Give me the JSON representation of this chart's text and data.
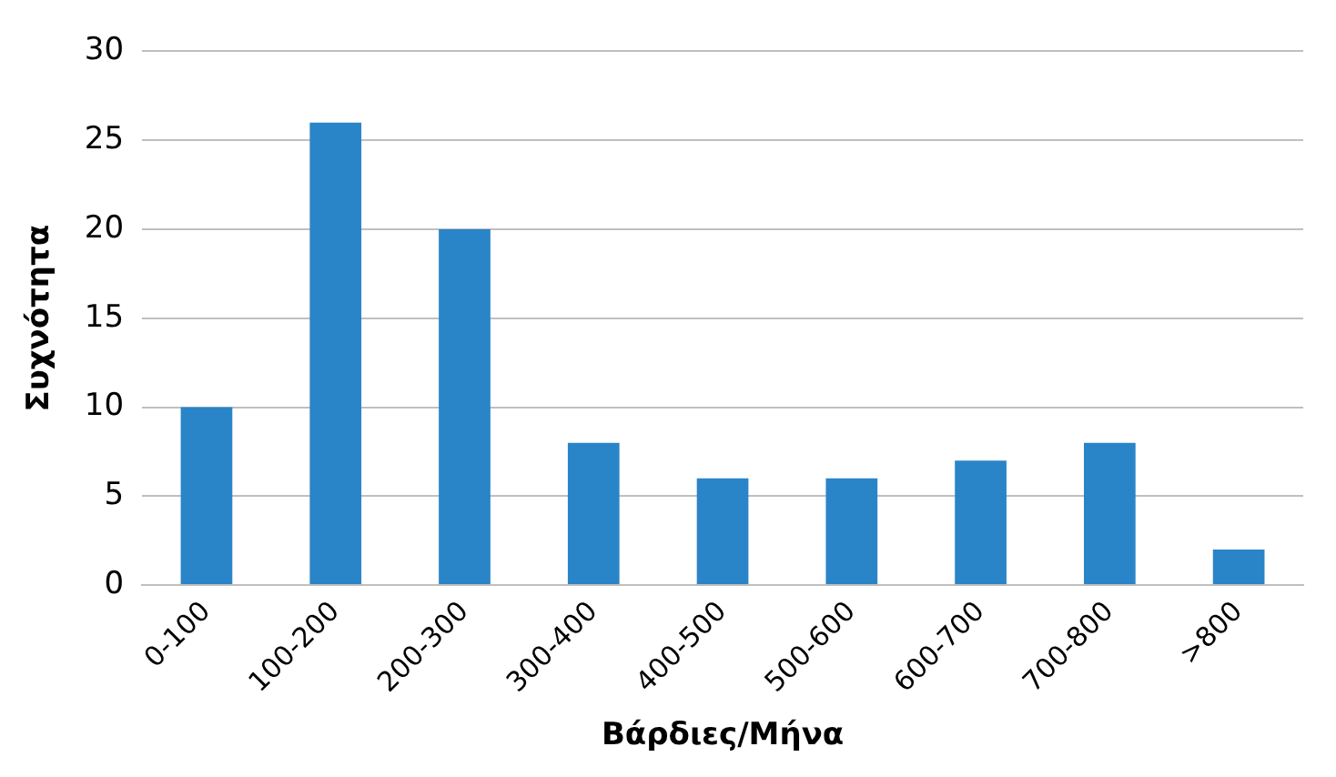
{
  "chart_data": {
    "type": "bar",
    "xlabel": "Βάρδιες/Μήνα",
    "ylabel": "Συχνότητα",
    "categories": [
      "0-100",
      "100-200",
      "200-300",
      "300-400",
      "400-500",
      "500-600",
      "600-700",
      "700-800",
      ">800"
    ],
    "values": [
      10,
      26,
      20,
      8,
      6,
      6,
      7,
      8,
      2
    ],
    "color": "#2a84c8",
    "ylim": [
      0,
      30
    ],
    "yticks": [
      0,
      5,
      10,
      15,
      20,
      25,
      30
    ],
    "grid": "y",
    "legend": false
  }
}
